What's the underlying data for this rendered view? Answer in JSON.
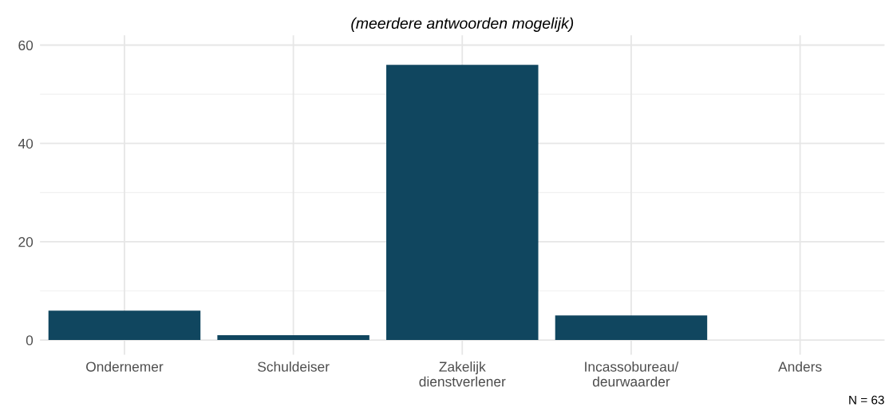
{
  "chart_data": {
    "type": "bar",
    "title": "(meerdere antwoorden mogelijk)",
    "categories": [
      "Ondernemer",
      "Schuldeiser",
      "Zakelijk\ndienstverlener",
      "Incassobureau/\ndeurwaarder",
      "Anders"
    ],
    "values": [
      6,
      1,
      56,
      5,
      0
    ],
    "color": "#10465f",
    "ylim": [
      -3,
      62
    ],
    "yticks": [
      0,
      20,
      40,
      60
    ],
    "grid": true,
    "annotations": [
      "N = 63"
    ]
  }
}
